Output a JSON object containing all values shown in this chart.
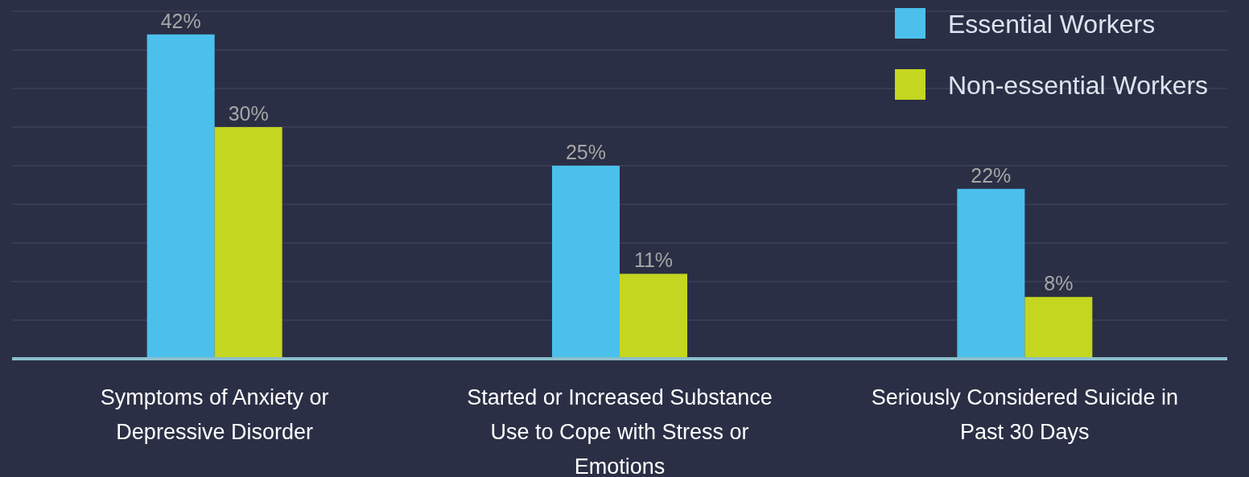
{
  "chart_data": {
    "type": "bar",
    "categories": [
      "Symptoms of Anxiety or Depressive Disorder",
      "Started or Increased Substance Use to Cope with Stress or Emotions",
      "Seriously Considered Suicide in Past 30 Days"
    ],
    "series": [
      {
        "name": "Essential Workers",
        "color": "#4bc0ec",
        "values": [
          42,
          25,
          22
        ],
        "value_labels": [
          "42%",
          "25%",
          "22%"
        ]
      },
      {
        "name": "Non-essential Workers",
        "color": "#c4d620",
        "values": [
          30,
          11,
          8
        ],
        "value_labels": [
          "30%",
          "11%",
          "8%"
        ]
      }
    ],
    "ylim": [
      0,
      45
    ],
    "yticks": [
      {
        "value": 0,
        "label": null
      },
      {
        "value": 5,
        "label": null
      },
      {
        "value": 10,
        "label": null
      },
      {
        "value": 15,
        "label": null
      },
      {
        "value": 20,
        "label": null
      },
      {
        "value": 25,
        "label": null
      },
      {
        "value": 30,
        "label": null
      },
      {
        "value": 35,
        "label": null
      },
      {
        "value": 40,
        "label": null
      },
      {
        "value": 45,
        "label": null
      }
    ],
    "tick_labels": "x",
    "grid": "y",
    "legend": "top right"
  }
}
